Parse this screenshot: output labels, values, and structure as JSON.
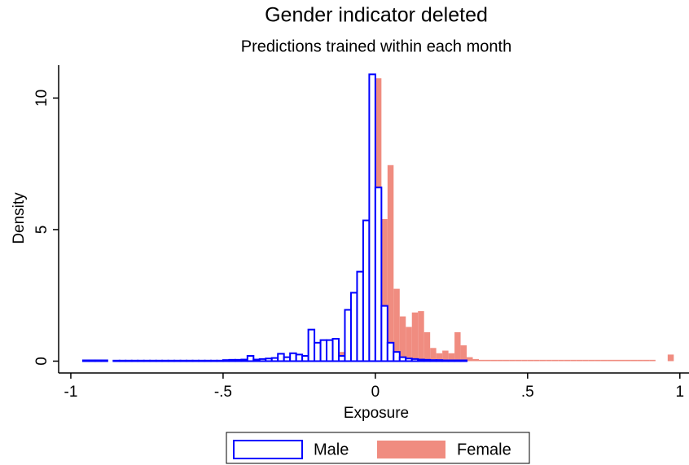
{
  "chart_data": {
    "type": "histogram",
    "title": "Gender indicator deleted",
    "subtitle": "Predictions trained within each month",
    "x_label": "Exposure",
    "y_label": "Density",
    "xlim": [
      -1.04,
      1.03
    ],
    "ylim": [
      -0.45,
      11.25
    ],
    "xticks": [
      -1,
      {
        "value": -0.5,
        "label": "-.5"
      },
      0,
      {
        "value": 0.5,
        "label": ".5"
      },
      1
    ],
    "yticks": [
      0,
      5,
      10
    ],
    "legend": "bottom",
    "series": [
      {
        "name": "Female",
        "color": "#f08c80",
        "outline": false,
        "bins": [
          -0.5,
          -0.48,
          -0.46,
          -0.44,
          -0.42,
          -0.4,
          -0.38,
          -0.36,
          -0.34,
          -0.32,
          -0.3,
          -0.28,
          -0.26,
          -0.24,
          -0.22,
          -0.2,
          -0.18,
          -0.16,
          -0.14,
          -0.12,
          -0.1,
          -0.08,
          -0.06,
          -0.04,
          -0.02,
          0,
          0.02,
          0.04,
          0.06,
          0.08,
          0.1,
          0.12,
          0.14,
          0.16,
          0.18,
          0.2,
          0.22,
          0.24,
          0.26,
          0.28,
          0.3,
          0.32,
          0.34,
          0.36,
          0.38,
          0.4,
          0.42,
          0.44,
          0.46,
          0.48,
          0.5,
          0.52,
          0.54,
          0.56,
          0.58,
          0.6,
          0.62,
          0.64,
          0.66,
          0.68,
          0.7,
          0.72,
          0.74,
          0.76,
          0.78,
          0.8,
          0.82,
          0.84,
          0.86,
          0.88,
          0.9,
          0.92,
          0.94,
          0.96,
          0.98
        ],
        "values": [
          0.03,
          0.03,
          0.03,
          0.03,
          0.03,
          0.03,
          0.03,
          0.03,
          0.03,
          0.03,
          0.05,
          0.05,
          0.05,
          0.05,
          0.05,
          0.08,
          0.1,
          0.15,
          0.2,
          0.35,
          0.5,
          0.8,
          1.6,
          2.5,
          5.3,
          10.75,
          5.4,
          7.45,
          2.75,
          1.7,
          1.3,
          1.85,
          1.9,
          1.1,
          0.5,
          0.3,
          0.4,
          0.3,
          1.1,
          0.6,
          0.15,
          0.08,
          0.05,
          0.05,
          0.05,
          0.05,
          0.05,
          0.05,
          0.05,
          0.05,
          0.05,
          0.05,
          0.05,
          0.05,
          0.05,
          0.05,
          0.05,
          0.05,
          0.05,
          0.05,
          0.05,
          0.05,
          0.05,
          0.05,
          0.05,
          0.05,
          0.05,
          0.05,
          0.05,
          0.05,
          0.05,
          0,
          0,
          0.25
        ]
      },
      {
        "name": "Male",
        "color": "#0000ff",
        "outline": true,
        "bins": [
          -0.96,
          -0.94,
          -0.92,
          -0.9,
          -0.88,
          -0.86,
          -0.84,
          -0.82,
          -0.8,
          -0.78,
          -0.76,
          -0.74,
          -0.72,
          -0.7,
          -0.68,
          -0.66,
          -0.64,
          -0.62,
          -0.6,
          -0.58,
          -0.56,
          -0.54,
          -0.52,
          -0.5,
          -0.48,
          -0.46,
          -0.44,
          -0.42,
          -0.4,
          -0.38,
          -0.36,
          -0.34,
          -0.32,
          -0.3,
          -0.28,
          -0.26,
          -0.24,
          -0.22,
          -0.2,
          -0.18,
          -0.16,
          -0.14,
          -0.12,
          -0.1,
          -0.08,
          -0.06,
          -0.04,
          -0.02,
          0,
          0.02,
          0.04,
          0.06,
          0.08,
          0.1,
          0.12,
          0.14,
          0.16,
          0.18,
          0.2,
          0.22,
          0.24,
          0.26,
          0.28,
          0.3
        ],
        "values": [
          0.03,
          0.03,
          0.03,
          0.03,
          0,
          0.02,
          0.02,
          0.02,
          0.02,
          0.02,
          0.02,
          0.02,
          0.02,
          0.02,
          0.02,
          0.02,
          0.02,
          0.02,
          0.02,
          0.02,
          0.02,
          0.02,
          0.02,
          0.04,
          0.05,
          0.05,
          0.06,
          0.2,
          0.06,
          0.08,
          0.1,
          0.12,
          0.28,
          0.15,
          0.3,
          0.25,
          0.2,
          1.2,
          0.7,
          0.8,
          0.8,
          0.85,
          0.2,
          1.95,
          2.6,
          3.4,
          5.35,
          10.9,
          6.6,
          2.1,
          0.7,
          0.35,
          0.15,
          0.1,
          0.08,
          0.06,
          0.05,
          0.04,
          0.04,
          0.03,
          0.03,
          0.03,
          0.03
        ]
      }
    ]
  }
}
